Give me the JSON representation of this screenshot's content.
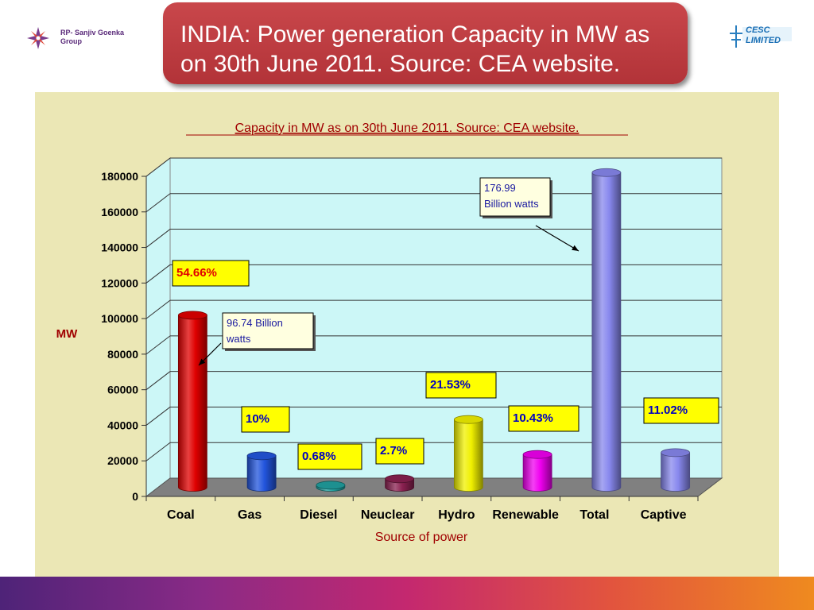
{
  "header": {
    "title": "INDIA: Power generation Capacity in MW as on 30th June 2011. Source: CEA website.",
    "logo_left_text": "RP- Sanjiv Goenka Group",
    "logo_right_text": "CESC LIMITED"
  },
  "colors": {
    "title_bg": "#b8383d",
    "chart_bg": "#ebe7b5",
    "plot_bg": "#ccf7f7",
    "floor": "#7f7f7f",
    "label_box": "#ffff00"
  },
  "chart_data": {
    "type": "bar",
    "title": "Capacity in MW as on 30th June 2011. Source: CEA website.",
    "xlabel": "Source of power",
    "ylabel": "MW",
    "ylim": [
      0,
      180000
    ],
    "yticks": [
      "0",
      "20000",
      "40000",
      "60000",
      "80000",
      "100000",
      "120000",
      "140000",
      "160000",
      "180000"
    ],
    "grid": true,
    "categories": [
      "Coal",
      "Gas",
      "Diesel",
      "Neuclear",
      "Hydro",
      "Renewable",
      "Total",
      "Captive"
    ],
    "values": [
      96740,
      17700,
      1200,
      4780,
      38100,
      18450,
      176990,
      19500
    ],
    "bar_colors": [
      "#e00000",
      "#2255dd",
      "#20a0a0",
      "#8a2050",
      "#f0f000",
      "#f000f0",
      "#8888ee",
      "#8888ee"
    ],
    "data_labels": [
      "54.66%",
      "10%",
      "0.68%",
      "2.7%",
      "21.53%",
      "10.43%",
      "",
      "11.02%"
    ],
    "label_text_colors": [
      "#e00000",
      "#0000c0",
      "#0000c0",
      "#0000c0",
      "#0000c0",
      "#0000c0",
      "#0000c0",
      "#0000c0"
    ],
    "annotations": [
      {
        "text_lines": [
          "96.74 Billion",
          "watts"
        ],
        "points_to": "Coal"
      },
      {
        "text_lines": [
          "176.99",
          "Billion watts"
        ],
        "points_to": "Total"
      }
    ]
  }
}
